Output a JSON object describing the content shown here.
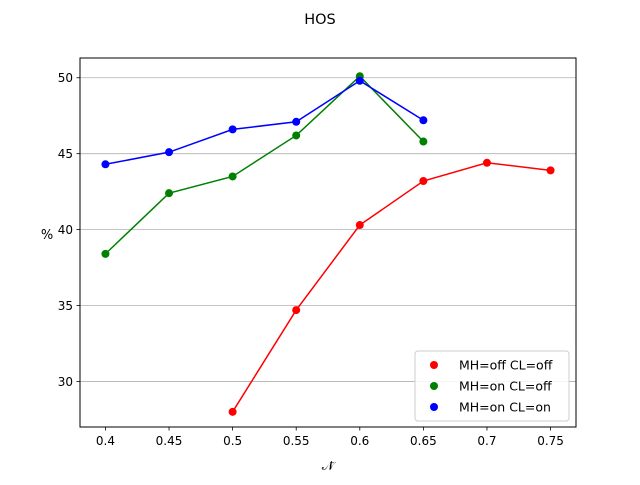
{
  "chart_data": {
    "type": "line",
    "title": "HOS",
    "xlabel": "𝒩̃",
    "ylabel": "%",
    "xlim": [
      0.38,
      0.77
    ],
    "ylim": [
      27.0,
      51.3
    ],
    "xticks": [
      0.4,
      0.45,
      0.5,
      0.55,
      0.6,
      0.65,
      0.7,
      0.75
    ],
    "xtick_labels": [
      "0.4",
      "0.45",
      "0.5",
      "0.55",
      "0.6",
      "0.65",
      "0.7",
      "0.75"
    ],
    "yticks": [
      30,
      35,
      40,
      45,
      50
    ],
    "ytick_labels": [
      "30",
      "35",
      "40",
      "45",
      "50"
    ],
    "grid": "horizontal",
    "legend_position": "lower-right",
    "series": [
      {
        "name": "MH=off CL=off",
        "color": "#ff0000",
        "x": [
          0.5,
          0.55,
          0.6,
          0.65,
          0.7,
          0.75
        ],
        "y": [
          28.0,
          34.7,
          40.3,
          43.2,
          44.4,
          43.9
        ]
      },
      {
        "name": "MH=on CL=off",
        "color": "#008000",
        "x": [
          0.4,
          0.45,
          0.5,
          0.55,
          0.6,
          0.65
        ],
        "y": [
          38.4,
          42.4,
          43.5,
          46.2,
          50.1,
          45.8
        ]
      },
      {
        "name": "MH=on CL=on",
        "color": "#0000ff",
        "x": [
          0.4,
          0.45,
          0.5,
          0.55,
          0.6,
          0.65
        ],
        "y": [
          44.3,
          45.1,
          46.6,
          47.1,
          49.8,
          47.2
        ]
      }
    ]
  }
}
